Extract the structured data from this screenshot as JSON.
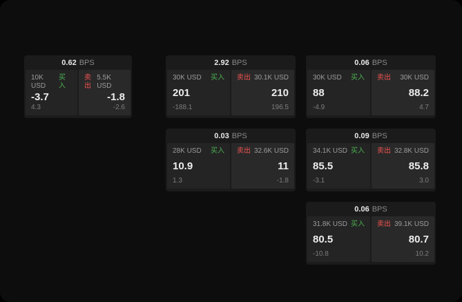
{
  "cards": [
    {
      "bps": "0.62",
      "bps_unit": "BPS",
      "buy": {
        "amount": "10K USD",
        "label": "买入",
        "price": "-3.7",
        "delta": "4.3"
      },
      "sell": {
        "label": "卖出",
        "amount": "5.5K USD",
        "price": "-1.8",
        "delta": "-2.6"
      }
    },
    {
      "bps": "2.92",
      "bps_unit": "BPS",
      "buy": {
        "amount": "30K USD",
        "label": "买入",
        "price": "201",
        "delta": "-188.1"
      },
      "sell": {
        "label": "卖出",
        "amount": "30.1K USD",
        "price": "210",
        "delta": "196.5"
      }
    },
    {
      "bps": "0.06",
      "bps_unit": "BPS",
      "buy": {
        "amount": "30K USD",
        "label": "买入",
        "price": "88",
        "delta": "-4.9"
      },
      "sell": {
        "label": "卖出",
        "amount": "30K USD",
        "price": "88.2",
        "delta": "4.7"
      }
    },
    {
      "bps": "0.03",
      "bps_unit": "BPS",
      "buy": {
        "amount": "28K USD",
        "label": "买入",
        "price": "10.9",
        "delta": "1.3"
      },
      "sell": {
        "label": "卖出",
        "amount": "32.6K USD",
        "price": "11",
        "delta": "-1.8"
      }
    },
    {
      "bps": "0.09",
      "bps_unit": "BPS",
      "buy": {
        "amount": "34.1K USD",
        "label": "买入",
        "price": "85.5",
        "delta": "-3.1"
      },
      "sell": {
        "label": "卖出",
        "amount": "32.8K USD",
        "price": "85.8",
        "delta": "3.0"
      }
    },
    {
      "bps": "0.06",
      "bps_unit": "BPS",
      "buy": {
        "amount": "31.8K USD",
        "label": "买入",
        "price": "80.5",
        "delta": "-10.8"
      },
      "sell": {
        "label": "卖出",
        "amount": "39.1K USD",
        "price": "80.7",
        "delta": "10.2"
      }
    }
  ]
}
